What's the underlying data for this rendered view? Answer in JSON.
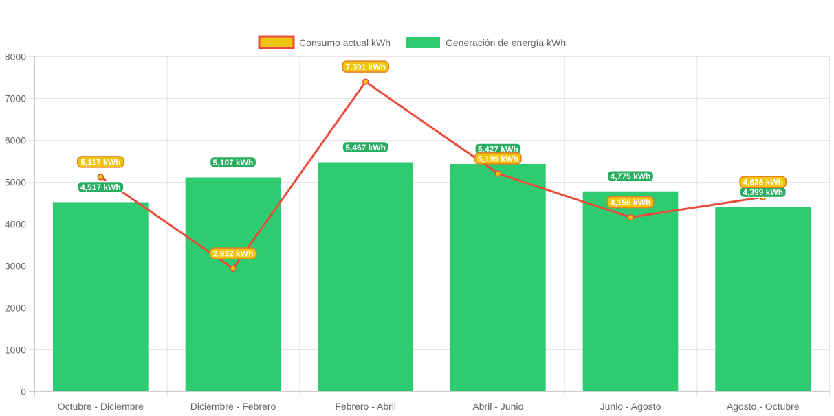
{
  "chart_data": {
    "type": "bar",
    "categories": [
      "Octubre - Diciembre",
      "Diciembre - Febrero",
      "Febrero - Abril",
      "Abril - Junio",
      "Junio - Agosto",
      "Agosto - Octubre"
    ],
    "series": [
      {
        "name": "Consumo actual kWh",
        "type": "line",
        "values": [
          5117,
          2932,
          7391,
          5199,
          4156,
          4636
        ],
        "labels": [
          "5,117 kWh",
          "2,932 kWh",
          "7,391 kWh",
          "5,199 kWh",
          "4,156 kWh",
          "4,636 kWh"
        ],
        "color": "#e74c3c",
        "label_color": "#f1c40f"
      },
      {
        "name": "Generación de energía kWh",
        "type": "bar",
        "values": [
          4517,
          5107,
          5467,
          5427,
          4775,
          4399
        ],
        "labels": [
          "4,517 kWh",
          "5,107 kWh",
          "5,467 kWh",
          "5,427 kWh",
          "4,775 kWh",
          "4,399 kWh"
        ],
        "color": "#2ecc71"
      }
    ],
    "ylim": [
      0,
      8000
    ],
    "yticks": [
      0,
      1000,
      2000,
      3000,
      4000,
      5000,
      6000,
      7000,
      8000
    ],
    "title": "",
    "xlabel": "",
    "ylabel": "",
    "legend_position": "top-center",
    "grid": true
  },
  "legend": {
    "line_label": "Consumo actual kWh",
    "bar_label": "Generación de energía kWh"
  }
}
